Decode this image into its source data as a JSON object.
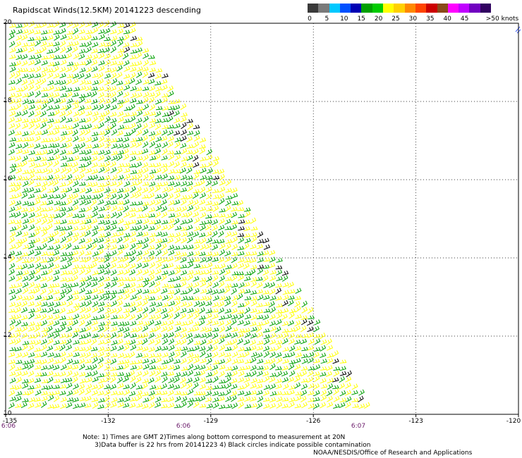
{
  "title": "Rapidscat Winds(12.5KM) 20141223 descending",
  "legend": {
    "colors": [
      "#3a3a3a",
      "#7a7a7a",
      "#00c8ff",
      "#0050ff",
      "#0000b4",
      "#00a000",
      "#00cc00",
      "#ffff00",
      "#ffd000",
      "#ff8800",
      "#ff4400",
      "#cc0000",
      "#8a4a1a",
      "#ff00ff",
      "#c000ff",
      "#7000c0",
      "#300060"
    ],
    "labels": [
      "0",
      "5",
      "10",
      "15",
      "20",
      "25",
      "30",
      "35",
      "40",
      "45",
      ">50 knots"
    ]
  },
  "map": {
    "lat_labels": [
      "20",
      "18",
      "16",
      "14",
      "12",
      "10"
    ],
    "lon_labels": [
      "-135",
      "-132",
      "-129",
      "-126",
      "-123",
      "-120"
    ],
    "time_labels": [
      "6:06",
      "6:06",
      "6:07"
    ],
    "lat_range": [
      10,
      20
    ],
    "lon_range": [
      -135,
      -120
    ],
    "swath": "descending",
    "wind_colors": [
      "#ffff00",
      "#00a000",
      "#000000"
    ]
  },
  "notes": [
    "Note: 1) Times are GMT 2)Times along bottom correspond to measurement at 20N",
    "      3)Data buffer is 22 hrs from 20141223 4) Black circles indicate possible contamination"
  ],
  "credit": "NOAA/NESDIS/Office of Research and Applications"
}
